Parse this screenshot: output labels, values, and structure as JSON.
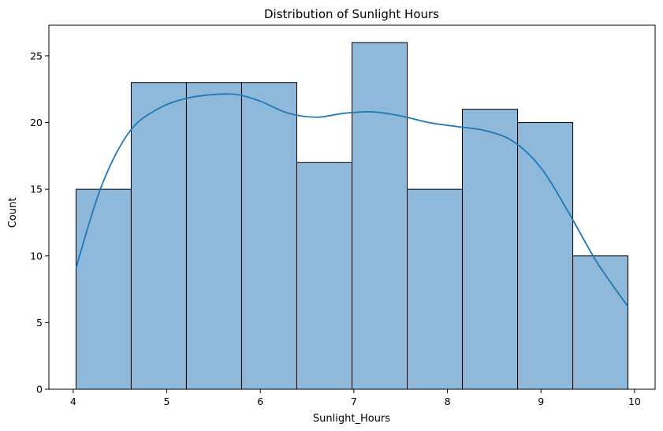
{
  "chart_data": {
    "type": "bar",
    "title": "Distribution of Sunlight Hours",
    "xlabel": "Sunlight_Hours",
    "ylabel": "Count",
    "xlim": [
      3.74,
      10.22
    ],
    "ylim": [
      0,
      27.3
    ],
    "xticks": [
      4,
      5,
      6,
      7,
      8,
      9,
      10
    ],
    "yticks": [
      0,
      5,
      10,
      15,
      20,
      25
    ],
    "bin_edges": [
      4.03,
      4.62,
      5.21,
      5.8,
      6.39,
      6.98,
      7.57,
      8.16,
      8.75,
      9.34,
      9.93
    ],
    "counts": [
      15,
      23,
      23,
      23,
      17,
      26,
      15,
      21,
      20,
      10
    ],
    "kde": {
      "x": [
        4.03,
        4.3,
        4.6,
        4.9,
        5.2,
        5.5,
        5.75,
        6.0,
        6.3,
        6.6,
        6.9,
        7.2,
        7.5,
        7.8,
        8.1,
        8.4,
        8.7,
        9.0,
        9.3,
        9.6,
        9.93
      ],
      "y": [
        9.1,
        15.2,
        19.3,
        21.0,
        21.8,
        22.1,
        22.1,
        21.6,
        20.7,
        20.4,
        20.7,
        20.8,
        20.5,
        20.0,
        19.7,
        19.4,
        18.6,
        16.6,
        13.2,
        9.5,
        6.2
      ]
    },
    "colors": {
      "bar_fill": "#8fb9db",
      "bar_edge": "#000000",
      "kde_line": "#1f77b4"
    },
    "grid": false,
    "legend": "none"
  }
}
